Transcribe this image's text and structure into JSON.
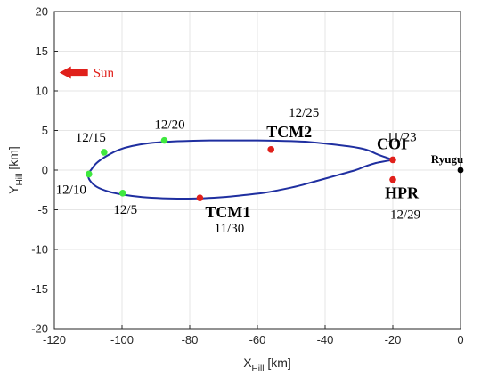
{
  "chart_data": {
    "type": "line",
    "xlabel": {
      "main": "X",
      "sub": "Hill",
      "unit": " [km]"
    },
    "ylabel": {
      "main": "Y",
      "sub": "Hill",
      "unit": " [km]"
    },
    "xlim": [
      -120,
      0
    ],
    "ylim": [
      -20,
      20
    ],
    "xticks": [
      -120,
      -100,
      -80,
      -60,
      -40,
      -20,
      0
    ],
    "yticks": [
      -20,
      -15,
      -10,
      -5,
      0,
      5,
      10,
      15,
      20
    ],
    "grid": true,
    "colors": {
      "trajectory": "#1f2fa0",
      "maneuver": "#e0201b",
      "daily_marker": "#3fe83f",
      "target": "#000000",
      "sun_arrow": "#e0201b"
    },
    "trajectory": {
      "x": [
        -20,
        -24,
        -28,
        -33,
        -39,
        -46,
        -53,
        -60,
        -67,
        -74,
        -80,
        -86,
        -92,
        -97,
        -101,
        -104.5,
        -107.5,
        -109.2,
        -110,
        -109.5,
        -107.5,
        -104,
        -99.5,
        -94,
        -88,
        -82,
        -76,
        -70,
        -64,
        -58,
        -54,
        -48,
        -42,
        -36,
        -31,
        -28,
        -25,
        -22,
        -20
      ],
      "y": [
        1.3,
        1.9,
        2.6,
        3.0,
        3.3,
        3.6,
        3.7,
        3.75,
        3.75,
        3.75,
        3.7,
        3.6,
        3.4,
        3.05,
        2.55,
        1.8,
        0.9,
        0.0,
        -0.5,
        -1.3,
        -2.1,
        -2.7,
        -3.1,
        -3.4,
        -3.55,
        -3.6,
        -3.55,
        -3.4,
        -3.15,
        -2.85,
        -2.55,
        -2.0,
        -1.3,
        -0.6,
        0.0,
        0.5,
        0.9,
        1.15,
        1.3
      ]
    },
    "points": [
      {
        "name": "COI",
        "date": "11/23",
        "x": -20,
        "y": 1.3,
        "kind": "maneuver"
      },
      {
        "name": "TCM1",
        "date": "11/30",
        "x": -77,
        "y": -3.5,
        "kind": "maneuver"
      },
      {
        "name": "",
        "date": "12/5",
        "x": -99.8,
        "y": -2.9,
        "kind": "daily"
      },
      {
        "name": "",
        "date": "12/10",
        "x": -109.8,
        "y": -0.5,
        "kind": "daily"
      },
      {
        "name": "",
        "date": "12/15",
        "x": -105.3,
        "y": 2.25,
        "kind": "daily"
      },
      {
        "name": "",
        "date": "12/20",
        "x": -87.5,
        "y": 3.75,
        "kind": "daily"
      },
      {
        "name": "TCM2",
        "date": "12/25",
        "x": -56,
        "y": 2.6,
        "kind": "maneuver"
      },
      {
        "name": "HPR",
        "date": "12/29",
        "x": -20,
        "y": -1.2,
        "kind": "maneuver"
      }
    ],
    "target": {
      "label": "Ryugu",
      "x": 0,
      "y": 0
    },
    "sun": {
      "label": "Sun",
      "direction": "-x"
    }
  }
}
